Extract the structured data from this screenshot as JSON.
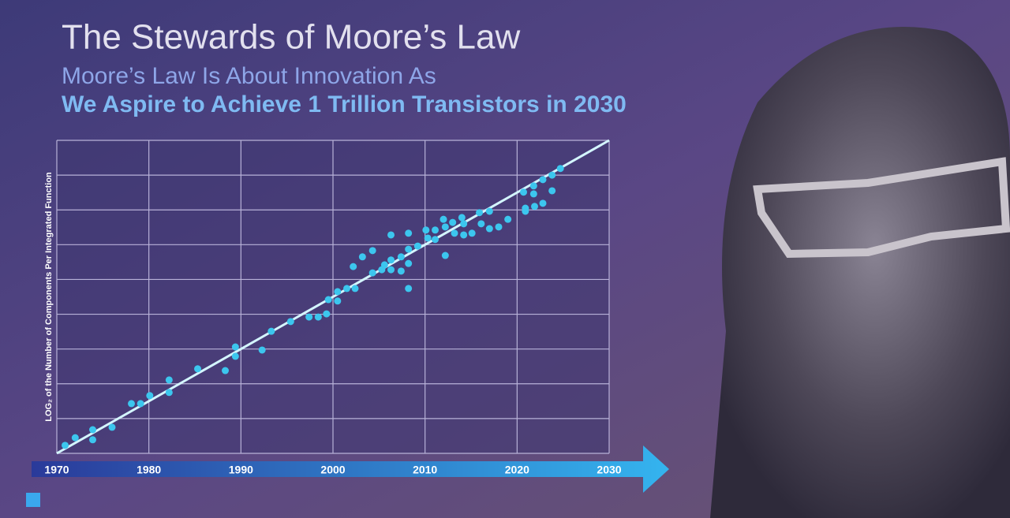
{
  "header": {
    "title": "The Stewards of Moore’s Law",
    "subtitle": "Moore’s Law Is About Innovation As",
    "tagline": "We Aspire to Achieve 1 Trillion Transistors in 2030"
  },
  "chart_data": {
    "type": "scatter",
    "y_label": "LOG₂ of the Number of Components Per Integrated Function",
    "x": [
      1970.9,
      1972.0,
      1973.9,
      1973.9,
      1976.0,
      1978.1,
      1979.1,
      1980.1,
      1982.2,
      1982.2,
      1985.3,
      1988.3,
      1989.4,
      1989.4,
      1992.3,
      1993.3,
      1995.4,
      1997.4,
      1998.4,
      1999.3,
      1999.5,
      2000.5,
      2000.5,
      2001.5,
      2002.4,
      2002.2,
      2003.2,
      2004.3,
      2004.3,
      2005.3,
      2005.6,
      2006.3,
      2006.3,
      2006.3,
      2007.4,
      2008.2,
      2008.2,
      2008.2,
      2008.2,
      2007.4,
      2009.2,
      2010.1,
      2010.3,
      2011.1,
      2011.1,
      2012.0,
      2012.2,
      2012.2,
      2013.0,
      2013.2,
      2014.0,
      2014.2,
      2014.2,
      2015.1,
      2015.9,
      2016.1,
      2017.0,
      2017.0,
      2018.0,
      2019.0,
      2020.7,
      2020.9,
      2020.9,
      2021.8,
      2021.8,
      2021.9,
      2022.8,
      2022.8,
      2023.8,
      2023.8,
      2024.7
    ],
    "values": [
      0.23,
      0.45,
      0.68,
      0.39,
      0.75,
      1.43,
      1.43,
      1.66,
      2.11,
      1.75,
      2.43,
      2.38,
      3.06,
      2.79,
      2.97,
      3.51,
      3.79,
      3.92,
      3.92,
      4.01,
      4.42,
      4.65,
      4.38,
      4.74,
      4.74,
      5.37,
      5.65,
      5.83,
      5.19,
      5.28,
      5.42,
      6.28,
      5.56,
      5.28,
      5.65,
      6.33,
      5.87,
      5.46,
      4.74,
      5.24,
      5.96,
      6.42,
      6.19,
      6.42,
      6.15,
      6.73,
      6.51,
      5.69,
      6.64,
      6.33,
      6.78,
      6.6,
      6.28,
      6.33,
      6.92,
      6.6,
      6.96,
      6.46,
      6.51,
      6.73,
      7.51,
      7.05,
      6.96,
      7.69,
      7.46,
      7.1,
      7.87,
      7.19,
      8.0,
      7.55,
      8.19
    ],
    "color": "#3cc6ee",
    "trend": {
      "x": [
        1970,
        2030
      ],
      "y": [
        0,
        9
      ],
      "color": "#d4f6ff"
    },
    "xlim": [
      1970,
      2030
    ],
    "ylim": [
      0,
      9
    ],
    "xticks": [
      1970,
      1980,
      1990,
      2000,
      2010,
      2020,
      2030
    ],
    "ygrid": [
      0,
      1,
      2,
      3,
      4,
      5,
      6,
      7,
      8,
      9
    ],
    "grid": true
  }
}
